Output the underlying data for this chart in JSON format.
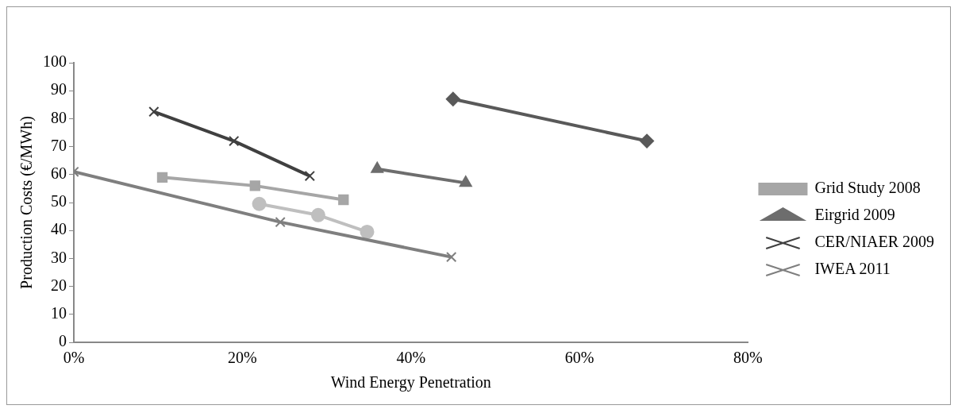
{
  "chart_data": {
    "type": "line",
    "xlabel": "Wind Energy Penetration",
    "ylabel": "Production Costs (€/MWh)",
    "xlim": [
      0,
      80
    ],
    "xticks": [
      {
        "value": 0,
        "label": "0%"
      },
      {
        "value": 20,
        "label": "20%"
      },
      {
        "value": 40,
        "label": "40%"
      },
      {
        "value": 60,
        "label": "60%"
      },
      {
        "value": 80,
        "label": "80%"
      }
    ],
    "ylim": [
      0,
      100
    ],
    "yticks": [
      0,
      10,
      20,
      30,
      40,
      50,
      60,
      70,
      80,
      90,
      100
    ],
    "grid": false,
    "legend": "right",
    "series": [
      {
        "color": "#595959",
        "marker": "diamond",
        "x": [
          45,
          68
        ],
        "values": [
          87,
          72
        ]
      },
      {
        "name": "Grid Study 2008",
        "color": "#a6a6a6",
        "marker": "square",
        "x": [
          10.5,
          21.5,
          32
        ],
        "values": [
          59,
          56,
          51
        ]
      },
      {
        "name": "Eirgrid 2009",
        "color": "#6d6d6d",
        "marker": "triangle",
        "x": [
          36,
          46.5
        ],
        "values": [
          62,
          57
        ]
      },
      {
        "name": "CER/NIAER 2009",
        "color": "#404040",
        "marker": "cross",
        "x": [
          9.5,
          19,
          28
        ],
        "values": [
          82.5,
          72,
          59.5
        ]
      },
      {
        "name": "IWEA 2011",
        "color": "#7f7f7f",
        "marker": "cross",
        "x": [
          0,
          24.5,
          44.8
        ],
        "values": [
          61,
          43,
          30.5
        ]
      },
      {
        "color": "#bfbfbf",
        "marker": "circle",
        "x": [
          22,
          29,
          34.8
        ],
        "values": [
          49.5,
          45.5,
          39.5
        ]
      }
    ]
  }
}
